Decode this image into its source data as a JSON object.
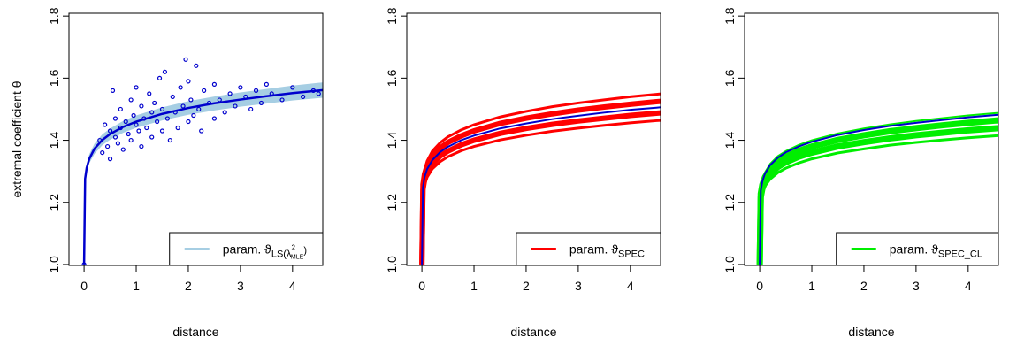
{
  "chart_data": [
    {
      "type": "line",
      "xlabel": "distance",
      "ylabel": "extremal coefficient θ",
      "xlim": [
        -0.29,
        4.58
      ],
      "ylim": [
        0.997,
        1.809
      ],
      "xticks": [
        0,
        1,
        2,
        3,
        4
      ],
      "yticks": [
        {
          "value": 1,
          "label": "1.0"
        },
        1.2,
        1.4,
        1.6,
        1.8
      ],
      "x": [
        0,
        0.02,
        0.05,
        0.1,
        0.2,
        0.35,
        0.5,
        0.75,
        1,
        1.5,
        2,
        2.5,
        3,
        3.5,
        4,
        4.5,
        4.8
      ],
      "band": {
        "color": "#a6cee3",
        "lower": [
          1.0,
          1.264,
          1.297,
          1.326,
          1.356,
          1.384,
          1.402,
          1.424,
          1.44,
          1.464,
          1.482,
          1.496,
          1.508,
          1.518,
          1.528,
          1.536,
          1.54
        ],
        "upper": [
          1.0,
          1.288,
          1.324,
          1.355,
          1.389,
          1.419,
          1.438,
          1.462,
          1.48,
          1.506,
          1.526,
          1.541,
          1.554,
          1.565,
          1.576,
          1.585,
          1.589
        ]
      },
      "series": [
        {
          "color": "#0000cd",
          "values": [
            1.0,
            1.276,
            1.311,
            1.34,
            1.373,
            1.401,
            1.42,
            1.443,
            1.46,
            1.485,
            1.504,
            1.519,
            1.531,
            1.542,
            1.552,
            1.56,
            1.565
          ]
        }
      ],
      "points": {
        "color": "#0000cd",
        "x": [
          0,
          0.3,
          0.35,
          0.4,
          0.45,
          0.5,
          0.5,
          0.55,
          0.6,
          0.6,
          0.65,
          0.7,
          0.7,
          0.75,
          0.8,
          0.85,
          0.9,
          0.9,
          0.95,
          1.0,
          1.0,
          1.05,
          1.1,
          1.1,
          1.15,
          1.2,
          1.25,
          1.3,
          1.3,
          1.35,
          1.4,
          1.45,
          1.5,
          1.5,
          1.55,
          1.6,
          1.65,
          1.7,
          1.75,
          1.8,
          1.85,
          1.9,
          1.95,
          2.0,
          2.0,
          2.05,
          2.1,
          2.15,
          2.2,
          2.25,
          2.3,
          2.4,
          2.5,
          2.5,
          2.6,
          2.7,
          2.8,
          2.9,
          3.0,
          3.1,
          3.2,
          3.3,
          3.4,
          3.5,
          3.6,
          3.8,
          4.0,
          4.2,
          4.4,
          4.5
        ],
        "y": [
          1.0,
          1.4,
          1.36,
          1.45,
          1.38,
          1.43,
          1.34,
          1.56,
          1.41,
          1.47,
          1.39,
          1.44,
          1.5,
          1.37,
          1.46,
          1.42,
          1.53,
          1.4,
          1.48,
          1.45,
          1.57,
          1.43,
          1.38,
          1.51,
          1.47,
          1.44,
          1.55,
          1.41,
          1.49,
          1.52,
          1.46,
          1.6,
          1.43,
          1.5,
          1.62,
          1.47,
          1.4,
          1.54,
          1.49,
          1.44,
          1.57,
          1.51,
          1.66,
          1.46,
          1.59,
          1.53,
          1.48,
          1.64,
          1.5,
          1.43,
          1.56,
          1.52,
          1.47,
          1.58,
          1.53,
          1.49,
          1.55,
          1.51,
          1.57,
          1.54,
          1.5,
          1.56,
          1.52,
          1.58,
          1.55,
          1.53,
          1.57,
          1.54,
          1.56,
          1.55
        ]
      },
      "legend": {
        "color": "#a6cee3",
        "label": "param. ϑ",
        "subscript": "LS(λ",
        "superscript": "2",
        "subsubscript": "MLE",
        "subscript_end": ")"
      }
    },
    {
      "type": "line",
      "xlabel": "distance",
      "xlim": [
        -0.29,
        4.58
      ],
      "ylim": [
        0.997,
        1.809
      ],
      "xticks": [
        0,
        1,
        2,
        3,
        4
      ],
      "yticks": [
        {
          "value": 1,
          "label": "1.0"
        },
        1.2,
        1.4,
        1.6,
        1.8
      ],
      "x": [
        0,
        0.02,
        0.05,
        0.1,
        0.2,
        0.35,
        0.5,
        0.75,
        1,
        1.5,
        2,
        2.5,
        3,
        3.5,
        4,
        4.5,
        4.8
      ],
      "series": [
        {
          "color": "#ff0000",
          "width": 3,
          "values": [
            1.0,
            1.228,
            1.257,
            1.281,
            1.308,
            1.331,
            1.347,
            1.366,
            1.38,
            1.401,
            1.416,
            1.429,
            1.439,
            1.448,
            1.456,
            1.463,
            1.467
          ]
        },
        {
          "color": "#ff0000",
          "width": 6,
          "values": [
            1.0,
            1.24,
            1.27,
            1.296,
            1.324,
            1.349,
            1.365,
            1.385,
            1.4,
            1.422,
            1.438,
            1.451,
            1.462,
            1.471,
            1.48,
            1.487,
            1.491
          ]
        },
        {
          "color": "#ff0000",
          "width": 6,
          "values": [
            1.0,
            1.258,
            1.291,
            1.318,
            1.348,
            1.375,
            1.393,
            1.414,
            1.43,
            1.454,
            1.471,
            1.485,
            1.497,
            1.507,
            1.516,
            1.524,
            1.528
          ]
        },
        {
          "color": "#ff0000",
          "width": 3,
          "values": [
            1.0,
            1.27,
            1.304,
            1.333,
            1.365,
            1.392,
            1.411,
            1.433,
            1.45,
            1.475,
            1.493,
            1.508,
            1.52,
            1.53,
            1.54,
            1.548,
            1.553
          ]
        },
        {
          "color": "#0000cd",
          "width": 2,
          "values": [
            1.0,
            1.249,
            1.281,
            1.307,
            1.336,
            1.362,
            1.379,
            1.4,
            1.415,
            1.438,
            1.454,
            1.468,
            1.479,
            1.489,
            1.498,
            1.505,
            1.51
          ]
        }
      ],
      "legend": {
        "color": "#ff0000",
        "label": "param. ϑ",
        "subscript": "SPEC"
      }
    },
    {
      "type": "line",
      "xlabel": "distance",
      "xlim": [
        -0.29,
        4.58
      ],
      "ylim": [
        0.997,
        1.809
      ],
      "xticks": [
        0,
        1,
        2,
        3,
        4
      ],
      "yticks": [
        {
          "value": 1,
          "label": "1.0"
        },
        1.2,
        1.4,
        1.6,
        1.8
      ],
      "x": [
        0,
        0.02,
        0.05,
        0.1,
        0.2,
        0.35,
        0.5,
        0.75,
        1,
        1.5,
        2,
        2.5,
        3,
        3.5,
        4,
        4.5,
        4.8
      ],
      "series": [
        {
          "color": "#00ee00",
          "width": 3,
          "values": [
            1.0,
            1.204,
            1.23,
            1.252,
            1.275,
            1.296,
            1.31,
            1.327,
            1.34,
            1.359,
            1.372,
            1.384,
            1.393,
            1.401,
            1.408,
            1.414,
            1.418
          ]
        },
        {
          "color": "#00ee00",
          "width": 7,
          "values": [
            1.0,
            1.216,
            1.243,
            1.266,
            1.292,
            1.314,
            1.329,
            1.347,
            1.36,
            1.38,
            1.394,
            1.406,
            1.416,
            1.424,
            1.432,
            1.438,
            1.442
          ]
        },
        {
          "color": "#00ee00",
          "width": 7,
          "values": [
            1.0,
            1.228,
            1.257,
            1.281,
            1.308,
            1.331,
            1.347,
            1.366,
            1.38,
            1.401,
            1.416,
            1.429,
            1.439,
            1.448,
            1.456,
            1.463,
            1.467
          ]
        },
        {
          "color": "#00ee00",
          "width": 2,
          "values": [
            1.0,
            1.24,
            1.27,
            1.296,
            1.324,
            1.349,
            1.365,
            1.385,
            1.4,
            1.422,
            1.438,
            1.451,
            1.462,
            1.471,
            1.48,
            1.487,
            1.491
          ]
        },
        {
          "color": "#0000cd",
          "width": 2,
          "values": [
            1.0,
            1.237,
            1.267,
            1.292,
            1.32,
            1.344,
            1.361,
            1.38,
            1.395,
            1.417,
            1.433,
            1.446,
            1.456,
            1.465,
            1.474,
            1.481,
            1.485
          ]
        }
      ],
      "legend": {
        "color": "#00ee00",
        "label": "param. ϑ",
        "subscript": "SPEC_CL"
      }
    }
  ]
}
